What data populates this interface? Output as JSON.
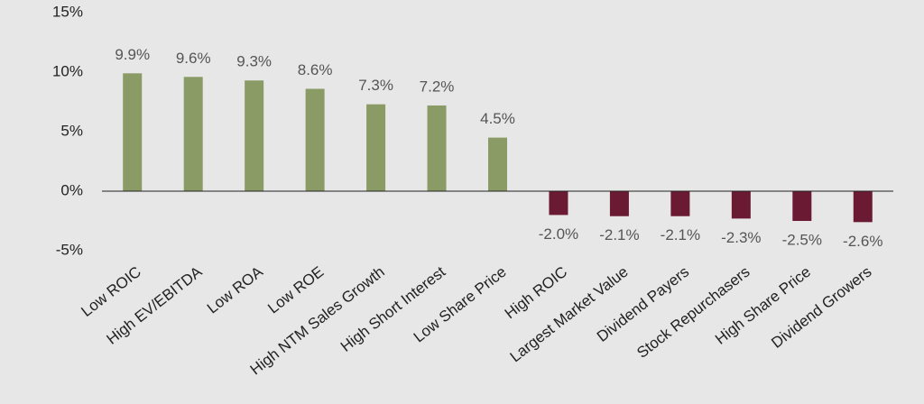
{
  "chart_data": {
    "type": "bar",
    "categories": [
      "Low ROIC",
      "High EV/EBITDA",
      "Low ROA",
      "Low ROE",
      "High NTM Sales Growth",
      "High Short Interest",
      "Low Share Price",
      "High ROIC",
      "Largest Market Value",
      "Dividend Payers",
      "Stock Repurchasers",
      "High Share Price",
      "Dividend Growers"
    ],
    "values": [
      9.9,
      9.6,
      9.3,
      8.6,
      7.3,
      7.2,
      4.5,
      -2.0,
      -2.1,
      -2.1,
      -2.3,
      -2.5,
      -2.6
    ],
    "value_labels": [
      "9.9%",
      "9.6%",
      "9.3%",
      "8.6%",
      "7.3%",
      "7.2%",
      "4.5%",
      "-2.0%",
      "-2.1%",
      "-2.1%",
      "-2.3%",
      "-2.5%",
      "-2.6%"
    ],
    "colors": [
      "#8a9b65",
      "#8a9b65",
      "#8a9b65",
      "#8a9b65",
      "#8a9b65",
      "#8a9b65",
      "#8a9b65",
      "#6b1a33",
      "#6b1a33",
      "#6b1a33",
      "#6b1a33",
      "#6b1a33",
      "#6b1a33"
    ],
    "ylim": [
      -5,
      15
    ],
    "yticks": [
      {
        "value": -5,
        "label": "-5%"
      },
      {
        "value": 0,
        "label": "0%"
      },
      {
        "value": 5,
        "label": "5%"
      },
      {
        "value": 10,
        "label": "10%"
      },
      {
        "value": 15,
        "label": "15%"
      }
    ],
    "grid": false
  }
}
